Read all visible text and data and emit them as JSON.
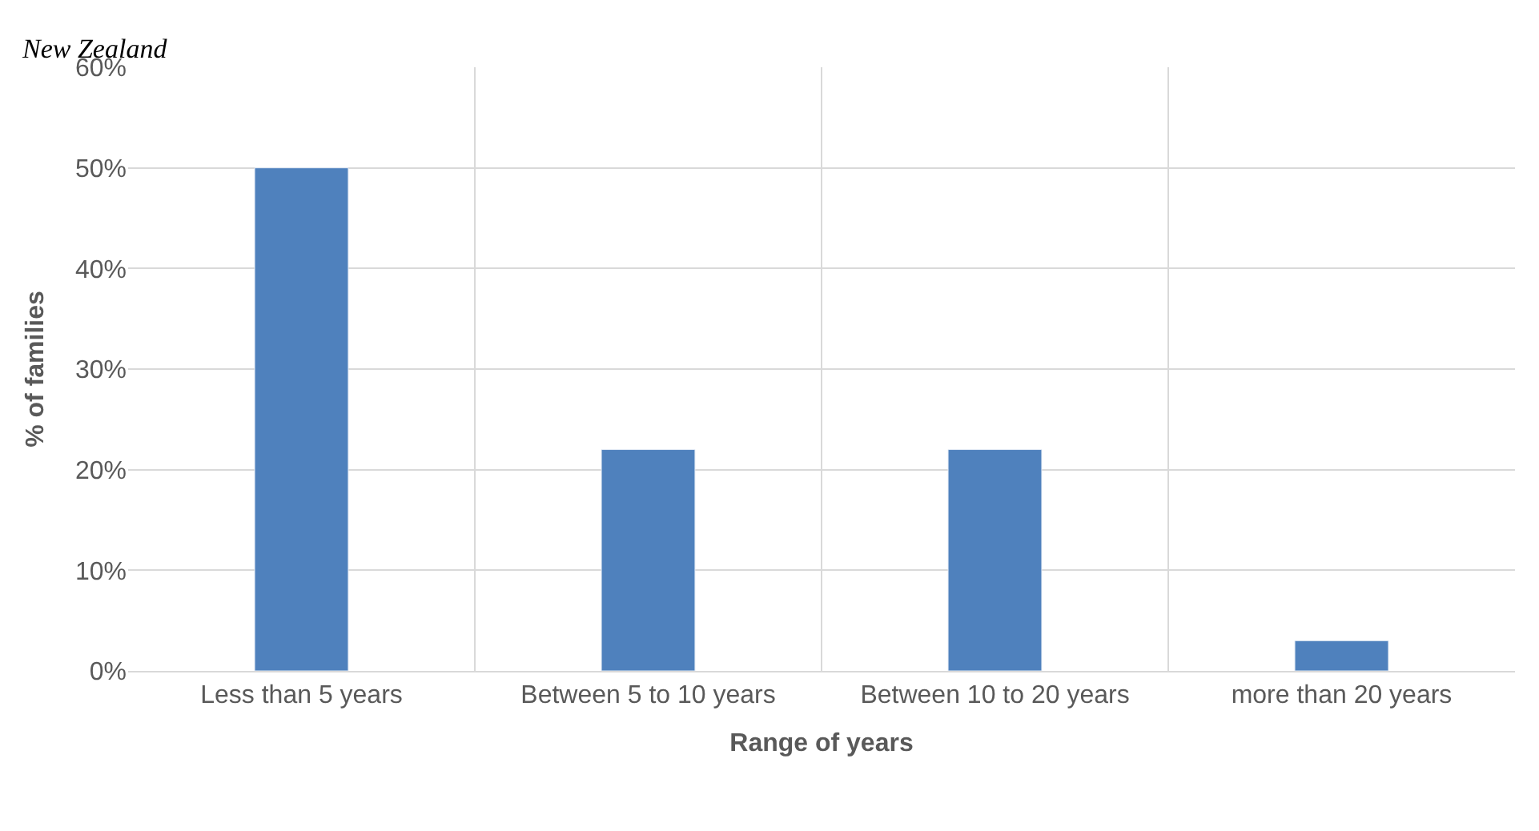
{
  "chart_data": {
    "type": "bar",
    "annotations": [
      "New Zealand"
    ],
    "xlabel": "Range of years",
    "ylabel": "% of families",
    "categories": [
      "Less than 5 years",
      "Between 5 to 10 years",
      "Between 10 to 20 years",
      "more than 20 years"
    ],
    "values": [
      50,
      22,
      22,
      3
    ],
    "color": "#4f81bd",
    "ylim": [
      0,
      60
    ],
    "yticks": [
      {
        "value": 0,
        "label": "0%"
      },
      {
        "value": 10,
        "label": "10%"
      },
      {
        "value": 20,
        "label": "20%"
      },
      {
        "value": 30,
        "label": "30%"
      },
      {
        "value": 40,
        "label": "40%"
      },
      {
        "value": 50,
        "label": "50%"
      },
      {
        "value": 60,
        "label": "60%"
      }
    ],
    "grid": true,
    "legend": false
  }
}
